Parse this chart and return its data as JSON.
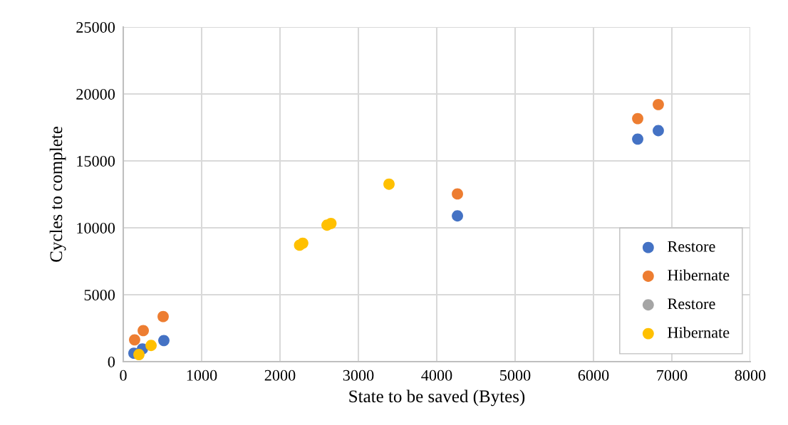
{
  "chart_data": {
    "type": "scatter",
    "xlabel": "State to be saved (Bytes)",
    "ylabel": "Cycles to complete",
    "xlim": [
      0,
      8000
    ],
    "xticks": [
      0,
      1000,
      2000,
      3000,
      4000,
      5000,
      6000,
      7000,
      8000
    ],
    "ylim": [
      0,
      25000
    ],
    "yticks": [
      0,
      5000,
      10000,
      15000,
      20000,
      25000
    ],
    "grid": true,
    "legend": "bottom right",
    "marker": "circle",
    "series": [
      {
        "name": "Restore",
        "color": "#4472c4",
        "x": [
          136,
          245,
          518,
          4264,
          6564,
          6827
        ],
        "values": [
          630,
          950,
          1580,
          10890,
          16630,
          17260
        ]
      },
      {
        "name": "Hibernate",
        "color": "#ed7d31",
        "x": [
          145,
          255,
          509,
          4264,
          6564,
          6827
        ],
        "values": [
          1630,
          2320,
          3370,
          12530,
          18160,
          19210
        ]
      },
      {
        "name": "Restore",
        "color": "#a5a5a5",
        "values": [
          null
        ]
      },
      {
        "name": "Hibernate",
        "color": "#ffc000",
        "x": [
          200,
          355,
          2250,
          2290,
          2600,
          2650,
          3391
        ],
        "values": [
          530,
          1210,
          8700,
          8850,
          10200,
          10330,
          13260
        ]
      }
    ]
  }
}
